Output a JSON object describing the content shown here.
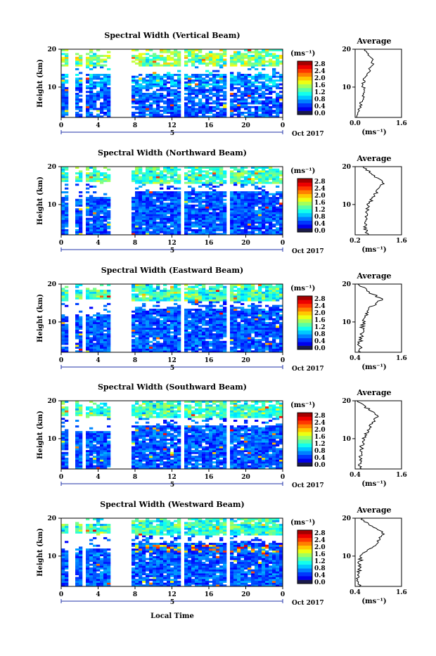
{
  "panels": [
    {
      "title": "Spectral Width (Vertical Beam)",
      "cb_ticks": [
        "2.8",
        "2.4",
        "2.0",
        "1.6",
        "1.2",
        "0.8",
        "0.4",
        "0.0"
      ],
      "avg_xticks": [
        "0.0",
        "1.6"
      ]
    },
    {
      "title": "Spectral Width (Northward Beam)",
      "cb_ticks": [
        "2.8",
        "2.4",
        "2.0",
        "1.6",
        "1.2",
        "0.8",
        "0.4",
        "0.0"
      ],
      "avg_xticks": [
        "0.2",
        "1.6"
      ]
    },
    {
      "title": "Spectral Width (Eastward Beam)",
      "cb_ticks": [
        "2.8",
        "2.4",
        "2.0",
        "1.6",
        "1.2",
        "0.8",
        "0.4",
        "0.0"
      ],
      "avg_xticks": [
        "0.4",
        "1.6"
      ]
    },
    {
      "title": "Spectral Width (Southward Beam)",
      "cb_ticks": [
        "2.8",
        "2.4",
        "2.0",
        "1.6",
        "1.2",
        "0.8",
        "0.4",
        "0.0"
      ],
      "avg_xticks": [
        "0.4",
        "1.6"
      ]
    },
    {
      "title": "Spectral Width (Westward Beam)",
      "cb_ticks": [
        "2.8",
        "2.4",
        "2.0",
        "1.6",
        "1.2",
        "0.8",
        "0.4",
        "0.0"
      ],
      "avg_xticks": [
        "0.4",
        "1.6"
      ]
    }
  ],
  "common": {
    "ylabel": "Height (km)",
    "yticks": [
      "20",
      "10"
    ],
    "xticks": [
      "0",
      "4",
      "8",
      "12",
      "16",
      "20",
      "0"
    ],
    "date_day": "5",
    "date_label": "Oct 2017",
    "cb_unit": "(ms⁻¹)",
    "avg_title": "Average",
    "avg_yticks": [
      "20",
      "10"
    ],
    "avg_xlabel": "(ms⁻¹)",
    "xlabel": "Local Time"
  },
  "chart_data": [
    {
      "type": "heatmap",
      "title": "Spectral Width (Vertical Beam)",
      "xlabel": "",
      "ylabel": "Height (km)",
      "x_ticks": [
        "0",
        "4",
        "8",
        "12",
        "16",
        "20",
        "0"
      ],
      "y_ticks": [
        10,
        20
      ],
      "colorbar_range": [
        0.0,
        2.8
      ],
      "colorbar_unit": "ms-1",
      "date": "5 Oct 2017",
      "average_profile": {
        "title": "Average",
        "xlabel": "(ms-1)",
        "xlim": [
          0.0,
          1.6
        ],
        "height_km": [
          2,
          4,
          6,
          8,
          10,
          12,
          14,
          16,
          18,
          20
        ],
        "values": [
          0.05,
          0.12,
          0.22,
          0.32,
          0.28,
          0.3,
          0.45,
          0.62,
          0.55,
          0.35
        ]
      }
    },
    {
      "type": "heatmap",
      "title": "Spectral Width (Northward Beam)",
      "xlabel": "",
      "ylabel": "Height (km)",
      "x_ticks": [
        "0",
        "4",
        "8",
        "12",
        "16",
        "20",
        "0"
      ],
      "y_ticks": [
        10,
        20
      ],
      "colorbar_range": [
        0.0,
        2.8
      ],
      "colorbar_unit": "ms-1",
      "date": "5 Oct 2017",
      "average_profile": {
        "title": "Average",
        "xlabel": "(ms-1)",
        "xlim": [
          0.2,
          1.6
        ],
        "height_km": [
          2,
          4,
          6,
          8,
          10,
          12,
          14,
          16,
          18,
          20
        ],
        "values": [
          0.55,
          0.5,
          0.52,
          0.55,
          0.6,
          0.75,
          0.9,
          1.05,
          0.7,
          0.45
        ]
      }
    },
    {
      "type": "heatmap",
      "title": "Spectral Width (Eastward Beam)",
      "xlabel": "",
      "ylabel": "Height (km)",
      "x_ticks": [
        "0",
        "4",
        "8",
        "12",
        "16",
        "20",
        "0"
      ],
      "y_ticks": [
        10,
        20
      ],
      "colorbar_range": [
        0.0,
        2.8
      ],
      "colorbar_unit": "ms-1",
      "date": "5 Oct 2017",
      "average_profile": {
        "title": "Average",
        "xlabel": "(ms-1)",
        "xlim": [
          0.4,
          1.6
        ],
        "height_km": [
          2,
          4,
          6,
          8,
          10,
          12,
          14,
          16,
          18,
          20
        ],
        "values": [
          0.55,
          0.52,
          0.55,
          0.58,
          0.6,
          0.7,
          0.8,
          1.1,
          0.75,
          0.5
        ]
      }
    },
    {
      "type": "heatmap",
      "title": "Spectral Width (Southward Beam)",
      "xlabel": "",
      "ylabel": "Height (km)",
      "x_ticks": [
        "0",
        "4",
        "8",
        "12",
        "16",
        "20",
        "0"
      ],
      "y_ticks": [
        10,
        20
      ],
      "colorbar_range": [
        0.0,
        2.8
      ],
      "colorbar_unit": "ms-1",
      "date": "5 Oct 2017",
      "average_profile": {
        "title": "Average",
        "xlabel": "(ms-1)",
        "xlim": [
          0.4,
          1.6
        ],
        "height_km": [
          2,
          4,
          6,
          8,
          10,
          12,
          14,
          16,
          18,
          20
        ],
        "values": [
          0.55,
          0.52,
          0.55,
          0.58,
          0.62,
          0.72,
          0.82,
          1.0,
          0.72,
          0.5
        ]
      }
    },
    {
      "type": "heatmap",
      "title": "Spectral Width (Westward Beam)",
      "xlabel": "Local Time",
      "ylabel": "Height (km)",
      "x_ticks": [
        "0",
        "4",
        "8",
        "12",
        "16",
        "20",
        "0"
      ],
      "y_ticks": [
        10,
        20
      ],
      "colorbar_range": [
        0.0,
        2.8
      ],
      "colorbar_unit": "ms-1",
      "date": "5 Oct 2017",
      "average_profile": {
        "title": "Average",
        "xlabel": "(ms-1)",
        "xlim": [
          0.4,
          1.6
        ],
        "height_km": [
          2,
          4,
          6,
          8,
          10,
          12,
          14,
          16,
          18,
          20
        ],
        "values": [
          0.5,
          0.48,
          0.5,
          0.52,
          0.55,
          0.8,
          1.0,
          1.15,
          0.85,
          0.55
        ]
      }
    }
  ]
}
